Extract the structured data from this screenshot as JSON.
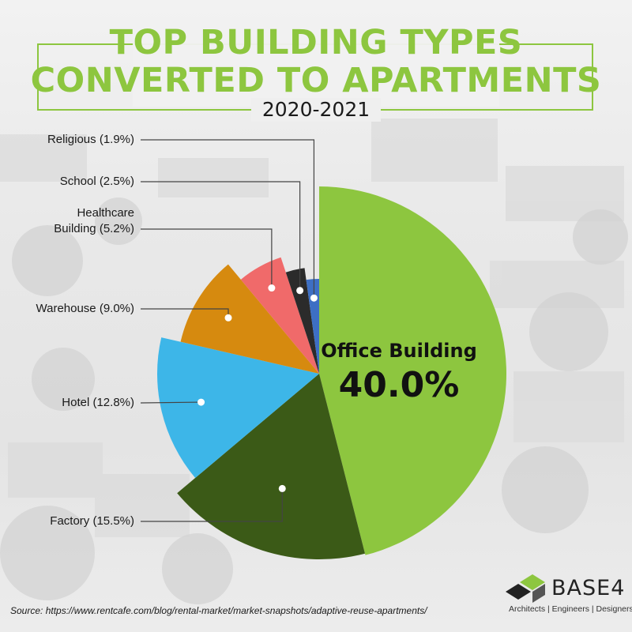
{
  "header": {
    "title_line1": "TOP BUILDING TYPES",
    "title_line2": "CONVERTED TO APARTMENTS",
    "subtitle": "2020-2021"
  },
  "chart_data": {
    "type": "pie",
    "title": "TOP BUILDING TYPES CONVERTED TO APARTMENTS",
    "subtitle": "2020-2021",
    "slices": [
      {
        "label": "Office Building",
        "display_label": "Office Building",
        "value": 40.0,
        "value_label": "40.0%",
        "color": "#8dc63f"
      },
      {
        "label": "Factory",
        "display_label": "Factory (15.5%)",
        "value": 15.5,
        "color": "#3b5a17"
      },
      {
        "label": "Hotel",
        "display_label": "Hotel (12.8%)",
        "value": 12.8,
        "color": "#3db6e8"
      },
      {
        "label": "Warehouse",
        "display_label": "Warehouse (9.0%)",
        "value": 9.0,
        "color": "#d68a0f"
      },
      {
        "label": "Healthcare Building",
        "display_label": "Healthcare Building (5.2%)",
        "display_lines": [
          "Healthcare",
          "Building (5.2%)"
        ],
        "value": 5.2,
        "color": "#f06a6a"
      },
      {
        "label": "School",
        "display_label": "School (2.5%)",
        "value": 2.5,
        "color": "#2b2b2b"
      },
      {
        "label": "Religious",
        "display_label": "Religious (1.9%)",
        "value": 1.9,
        "color": "#3d6fc4"
      }
    ]
  },
  "footer": {
    "source": "Source: https://www.rentcafe.com/blog/rental-market/market-snapshots/adaptive-reuse-apartments/"
  },
  "logo": {
    "name": "BASE4",
    "tagline": "Architects | Engineers | Designers",
    "color": "#8dc63f"
  }
}
